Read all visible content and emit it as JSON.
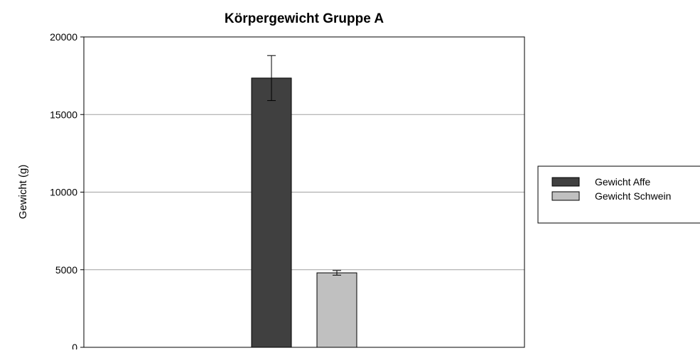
{
  "chart_data": {
    "type": "bar",
    "title": "Körpergewicht Gruppe A",
    "xlabel": "",
    "ylabel": "Gewicht (g)",
    "ylim": [
      0,
      20000
    ],
    "yticks": [
      0,
      5000,
      10000,
      15000,
      20000
    ],
    "grid": "horizontal",
    "legend": "right",
    "series": [
      {
        "name": "Gewicht Affe",
        "value": 17350,
        "error": 1450,
        "color": "#404040"
      },
      {
        "name": "Gewicht Schwein",
        "value": 4800,
        "error": 150,
        "color": "#c0c0c0"
      }
    ]
  }
}
